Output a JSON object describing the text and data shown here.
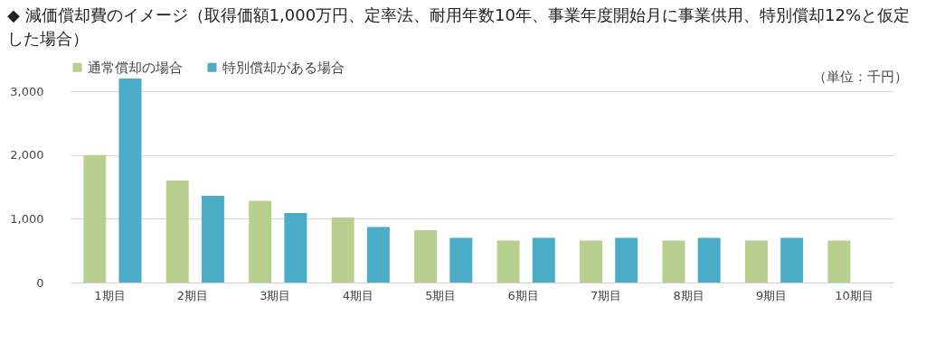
{
  "chart_data": {
    "type": "bar",
    "title": "◆ 減価償却費のイメージ（取得価額1,000万円、定率法、耐用年数10年、事業年度開始月に事業供用、特別償却12%と仮定した場合）",
    "annotations": [
      "（単位：千円）"
    ],
    "categories": [
      "1期目",
      "2期目",
      "3期目",
      "4期目",
      "5期目",
      "6期目",
      "7期目",
      "8期目",
      "9期目",
      "10期目"
    ],
    "series": [
      {
        "name": "通常償却の場合",
        "color": "#b8d08f",
        "values": [
          2000,
          1600,
          1280,
          1020,
          820,
          660,
          660,
          660,
          660,
          660
        ]
      },
      {
        "name": "特別償却がある場合",
        "color": "#4bacc6",
        "values": [
          3200,
          1360,
          1090,
          870,
          700,
          700,
          700,
          700,
          700,
          null
        ]
      }
    ],
    "ylim": [
      0,
      3200
    ],
    "yticks": [
      0,
      {
        "value": 1000,
        "label": "1,000"
      },
      {
        "value": 2000,
        "label": "2,000"
      },
      {
        "value": 3000,
        "label": "3,000"
      }
    ],
    "grid": "y",
    "legend": "top"
  }
}
